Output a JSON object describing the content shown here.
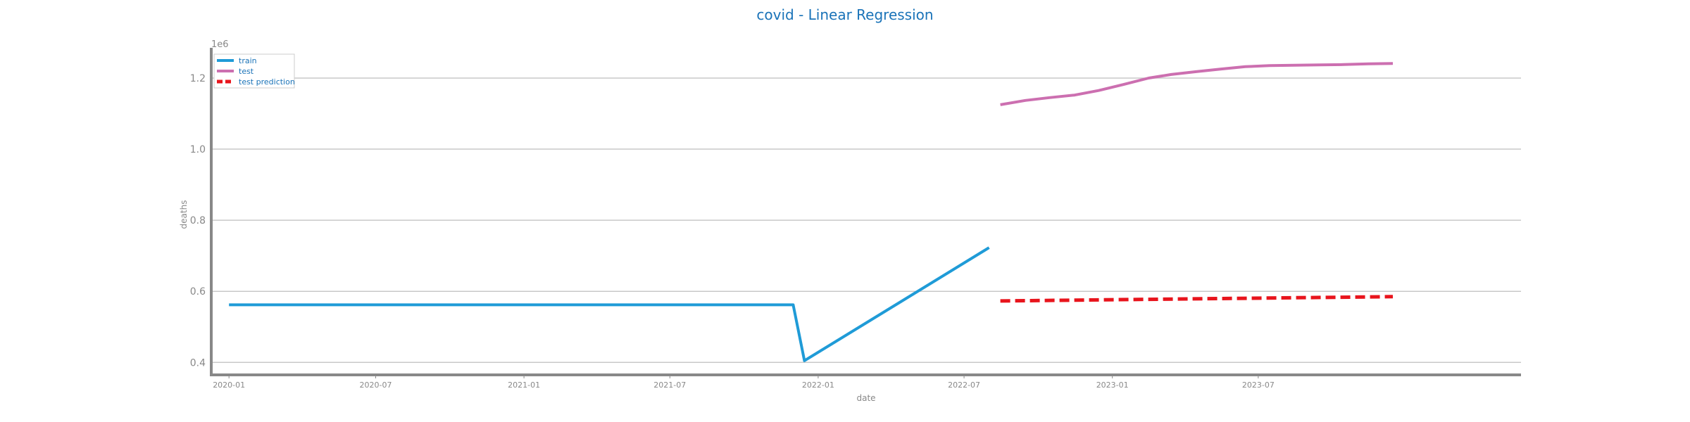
{
  "chart_data": {
    "type": "line",
    "title": "covid - Linear Regression",
    "xlabel": "date",
    "ylabel": "deaths",
    "y_scale_label": "1e6",
    "x_type": "date",
    "xlim": [
      "2019-12-10",
      "2024-05-22"
    ],
    "ylim": [
      0.365,
      1.285
    ],
    "x_ticks": [
      "2020-01",
      "2020-07",
      "2021-01",
      "2021-07",
      "2022-01",
      "2022-07",
      "2023-01",
      "2023-07"
    ],
    "y_ticks": [
      0.4,
      0.6,
      0.8,
      1.0,
      1.2
    ],
    "y_tick_labels": [
      "0.4",
      "0.6",
      "0.8",
      "1.0",
      "1.2"
    ],
    "grid": "horizontal",
    "legend_position": "top-left",
    "series": [
      {
        "name": "train",
        "color": "#1f9bd7",
        "style": "solid",
        "points": [
          {
            "x": "2020-01-01",
            "y": 0.562
          },
          {
            "x": "2021-12-01",
            "y": 0.562
          },
          {
            "x": "2021-12-15",
            "y": 0.405
          },
          {
            "x": "2022-08-01",
            "y": 0.723
          }
        ]
      },
      {
        "name": "test",
        "color": "#cc6fb0",
        "style": "solid",
        "points": [
          {
            "x": "2022-08-15",
            "y": 1.125
          },
          {
            "x": "2022-09-15",
            "y": 1.137
          },
          {
            "x": "2022-10-15",
            "y": 1.145
          },
          {
            "x": "2022-11-15",
            "y": 1.152
          },
          {
            "x": "2022-12-15",
            "y": 1.165
          },
          {
            "x": "2023-01-15",
            "y": 1.182
          },
          {
            "x": "2023-02-15",
            "y": 1.2
          },
          {
            "x": "2023-03-15",
            "y": 1.21
          },
          {
            "x": "2023-04-15",
            "y": 1.218
          },
          {
            "x": "2023-05-15",
            "y": 1.225
          },
          {
            "x": "2023-06-15",
            "y": 1.232
          },
          {
            "x": "2023-07-15",
            "y": 1.235
          },
          {
            "x": "2023-08-15",
            "y": 1.236
          },
          {
            "x": "2023-09-15",
            "y": 1.237
          },
          {
            "x": "2023-10-15",
            "y": 1.238
          },
          {
            "x": "2023-11-15",
            "y": 1.24
          },
          {
            "x": "2023-12-15",
            "y": 1.241
          }
        ]
      },
      {
        "name": "test prediction",
        "color": "#e8141c",
        "style": "dashed",
        "points": [
          {
            "x": "2022-08-15",
            "y": 0.573
          },
          {
            "x": "2023-12-15",
            "y": 0.585
          }
        ]
      }
    ]
  }
}
